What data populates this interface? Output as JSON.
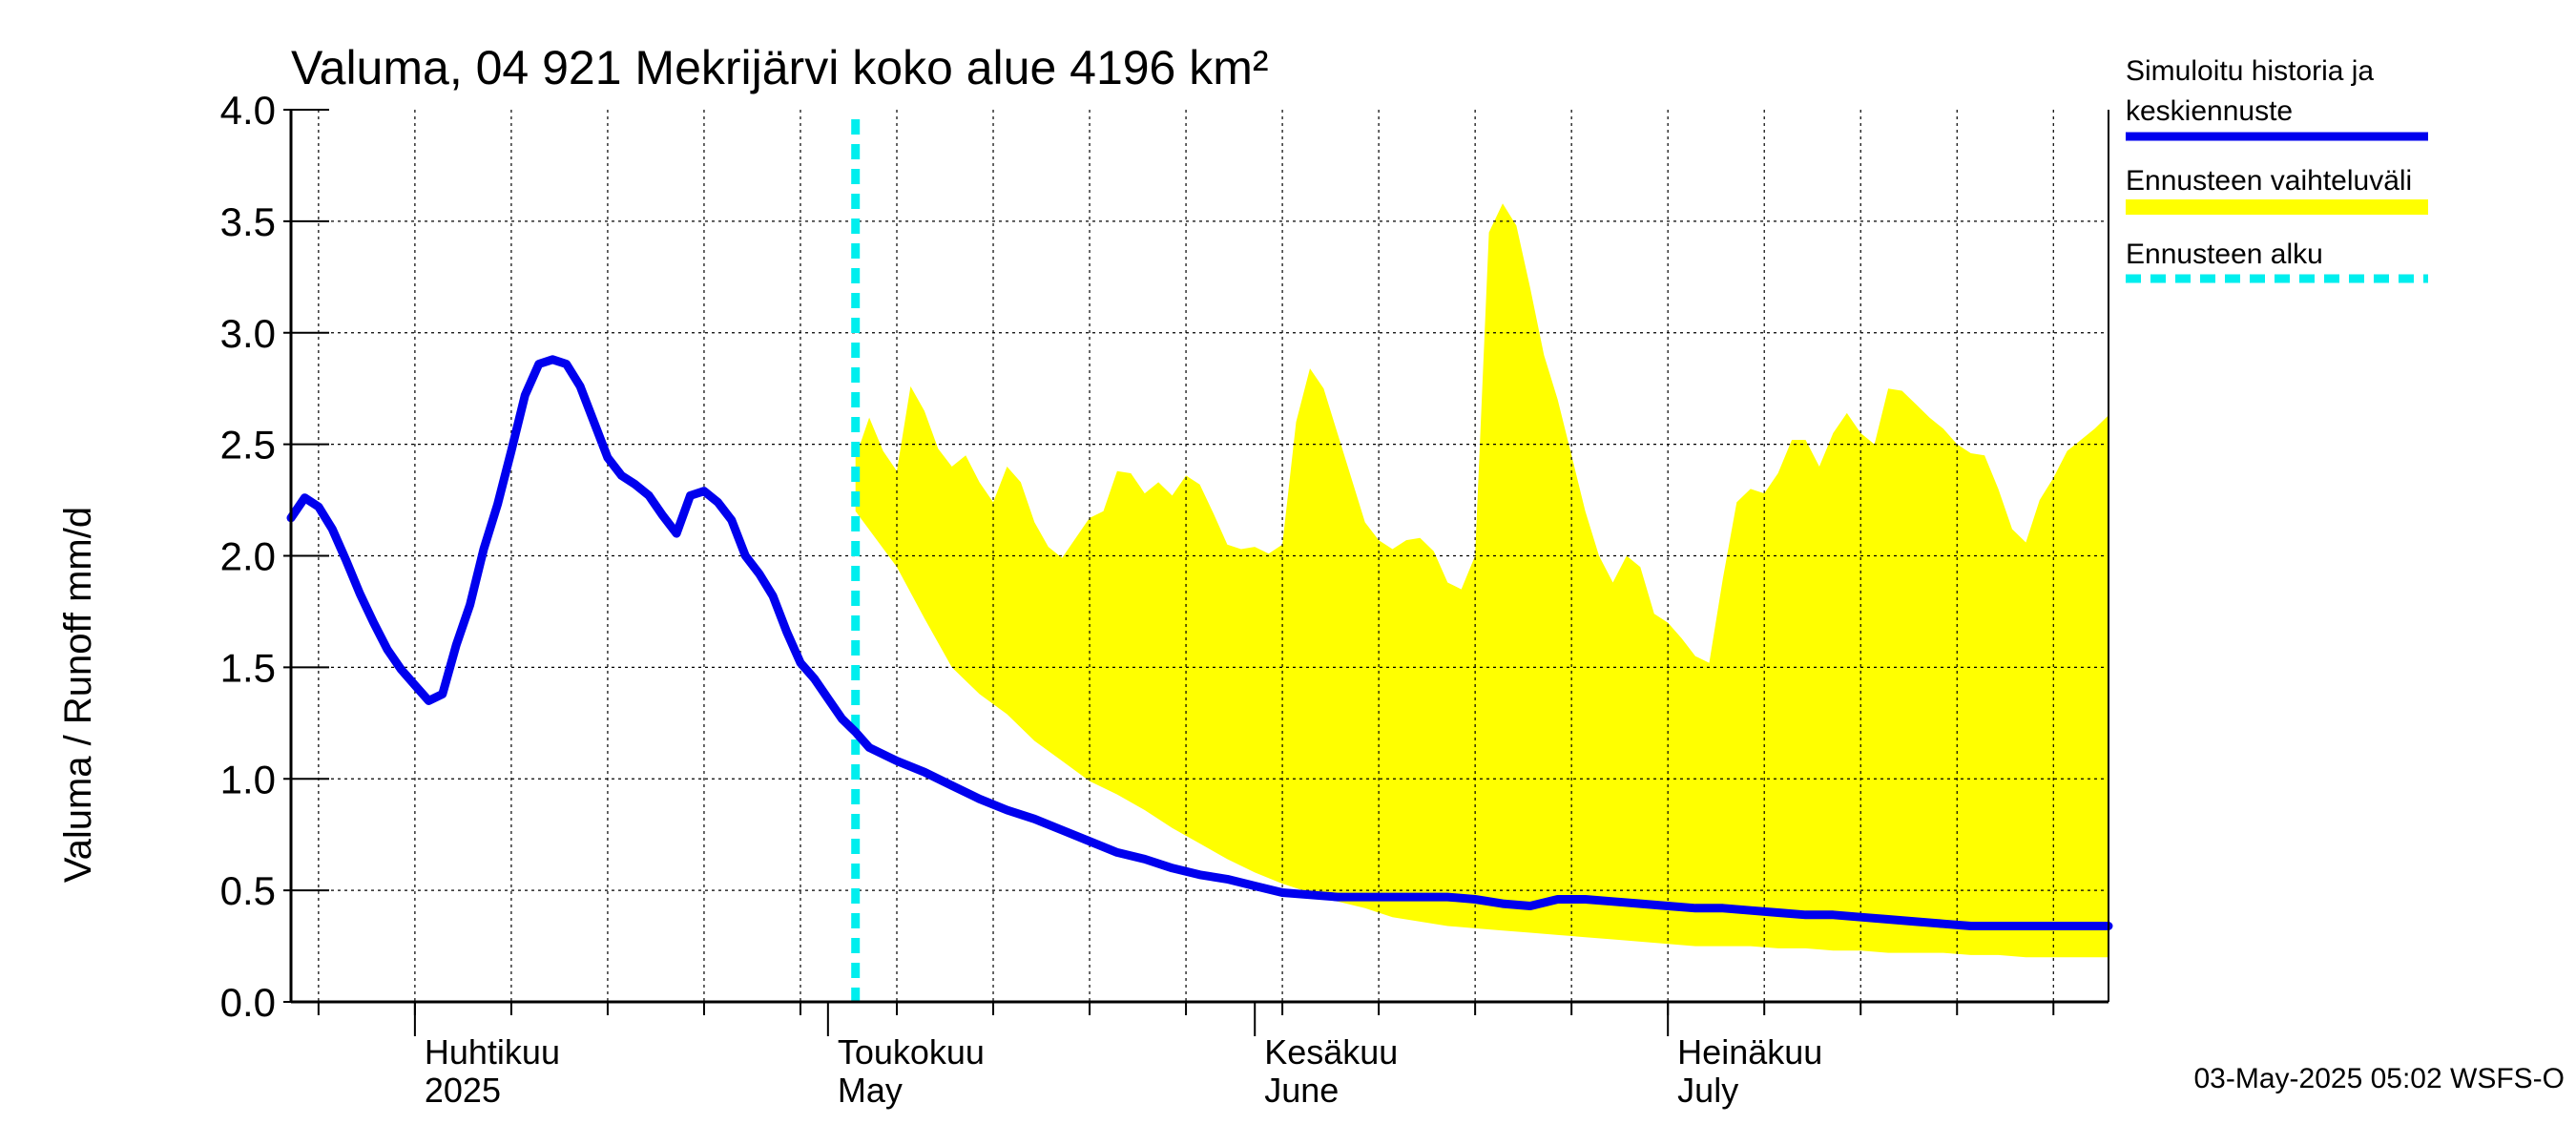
{
  "chart_data": {
    "type": "area",
    "title": "Valuma, 04 921 Mekrijärvi koko alue 4196 km²",
    "ylabel": "Valuma / Runoff     mm/d",
    "ylim": [
      0,
      4.0
    ],
    "yticks": [
      "0.0",
      "0.5",
      "1.0",
      "1.5",
      "2.0",
      "2.5",
      "3.0",
      "3.5",
      "4.0"
    ],
    "x_unit": "days since 2025-03-23",
    "xlim": [
      0,
      132
    ],
    "months": [
      {
        "name": "Huhtikuu",
        "en": "2025",
        "day": 9
      },
      {
        "name": "Toukokuu",
        "en": "May",
        "day": 39
      },
      {
        "name": "Kesäkuu",
        "en": "June",
        "day": 70
      },
      {
        "name": "Heinäkuu",
        "en": "July",
        "day": 100
      }
    ],
    "forecast_start_day": 41,
    "legend": {
      "history": "Simuloitu historia ja keskiennuste",
      "history_line1": "Simuloitu historia ja",
      "history_line2": "keskiennuste",
      "range": "Ennusteen vaihteluväli",
      "start": "Ennusteen alku"
    },
    "colors": {
      "history": "#0000ee",
      "range": "#ffff00",
      "start": "#00eeee"
    },
    "footer": "03-May-2025 05:02 WSFS-O",
    "series": [
      {
        "name": "Simuloitu historia ja keskiennuste",
        "x": [
          0,
          1,
          2,
          3,
          4,
          5,
          6,
          7,
          8,
          9,
          10,
          11,
          12,
          13,
          14,
          15,
          16,
          17,
          18,
          19,
          20,
          21,
          22,
          23,
          24,
          25,
          26,
          27,
          28,
          29,
          30,
          31,
          32,
          33,
          34,
          35,
          36,
          37,
          38,
          39,
          40,
          41,
          42,
          44,
          46,
          48,
          50,
          52,
          54,
          56,
          58,
          60,
          62,
          64,
          66,
          68,
          70,
          72,
          74,
          76,
          78,
          80,
          82,
          84,
          86,
          88,
          90,
          92,
          94,
          96,
          98,
          100,
          102,
          104,
          106,
          108,
          110,
          112,
          114,
          116,
          118,
          120,
          122,
          124,
          126,
          128,
          130,
          132
        ],
        "values": [
          2.17,
          2.26,
          2.22,
          2.12,
          1.98,
          1.83,
          1.7,
          1.58,
          1.49,
          1.42,
          1.35,
          1.38,
          1.6,
          1.78,
          2.03,
          2.23,
          2.47,
          2.72,
          2.86,
          2.88,
          2.86,
          2.76,
          2.6,
          2.44,
          2.36,
          2.32,
          2.27,
          2.18,
          2.1,
          2.27,
          2.29,
          2.24,
          2.16,
          2.0,
          1.92,
          1.82,
          1.66,
          1.52,
          1.45,
          1.36,
          1.27,
          1.21,
          1.14,
          1.08,
          1.03,
          0.97,
          0.91,
          0.86,
          0.82,
          0.77,
          0.72,
          0.67,
          0.64,
          0.6,
          0.57,
          0.55,
          0.52,
          0.49,
          0.48,
          0.47,
          0.47,
          0.47,
          0.47,
          0.47,
          0.46,
          0.44,
          0.43,
          0.46,
          0.46,
          0.45,
          0.44,
          0.43,
          0.42,
          0.42,
          0.41,
          0.4,
          0.39,
          0.39,
          0.38,
          0.37,
          0.36,
          0.35,
          0.34,
          0.34,
          0.34,
          0.34,
          0.34,
          0.34
        ]
      },
      {
        "name": "Ennusteen vaihteluväli (yläraja)",
        "x": [
          41,
          42,
          43,
          44,
          45,
          46,
          47,
          48,
          49,
          50,
          51,
          52,
          53,
          54,
          55,
          56,
          57,
          58,
          59,
          60,
          61,
          62,
          63,
          64,
          65,
          66,
          67,
          68,
          69,
          70,
          71,
          72,
          73,
          74,
          75,
          76,
          77,
          78,
          79,
          80,
          81,
          82,
          83,
          84,
          85,
          86,
          87,
          88,
          89,
          90,
          91,
          92,
          93,
          94,
          95,
          96,
          97,
          98,
          99,
          100,
          101,
          102,
          103,
          104,
          105,
          106,
          107,
          108,
          109,
          110,
          111,
          112,
          113,
          114,
          115,
          116,
          117,
          118,
          119,
          120,
          121,
          122,
          123,
          124,
          125,
          126,
          127,
          128,
          129,
          130,
          131,
          132
        ],
        "values": [
          2.44,
          2.62,
          2.47,
          2.38,
          2.76,
          2.65,
          2.48,
          2.4,
          2.45,
          2.33,
          2.24,
          2.4,
          2.33,
          2.15,
          2.04,
          1.99,
          2.08,
          2.17,
          2.2,
          2.38,
          2.37,
          2.28,
          2.33,
          2.27,
          2.36,
          2.32,
          2.19,
          2.05,
          2.03,
          2.04,
          2.01,
          2.05,
          2.6,
          2.84,
          2.75,
          2.55,
          2.35,
          2.15,
          2.07,
          2.03,
          2.07,
          2.08,
          2.02,
          1.88,
          1.85,
          2.0,
          3.45,
          3.58,
          3.48,
          3.2,
          2.9,
          2.7,
          2.45,
          2.2,
          2.0,
          1.88,
          2.0,
          1.95,
          1.74,
          1.7,
          1.63,
          1.55,
          1.52,
          1.9,
          2.24,
          2.3,
          2.28,
          2.37,
          2.52,
          2.52,
          2.4,
          2.55,
          2.64,
          2.55,
          2.5,
          2.75,
          2.74,
          2.68,
          2.62,
          2.57,
          2.5,
          2.46,
          2.45,
          2.3,
          2.12,
          2.06,
          2.25,
          2.35,
          2.47,
          2.52,
          2.57,
          2.63
        ]
      },
      {
        "name": "Ennusteen vaihteluväli (alaraja)",
        "x": [
          41,
          44,
          46,
          48,
          50,
          52,
          54,
          56,
          58,
          60,
          62,
          64,
          66,
          68,
          70,
          72,
          74,
          76,
          78,
          80,
          82,
          84,
          86,
          88,
          90,
          92,
          94,
          96,
          98,
          100,
          102,
          104,
          106,
          108,
          110,
          112,
          114,
          116,
          118,
          120,
          122,
          124,
          126,
          128,
          130,
          132
        ],
        "values": [
          2.2,
          1.95,
          1.72,
          1.5,
          1.38,
          1.29,
          1.17,
          1.08,
          0.99,
          0.93,
          0.86,
          0.78,
          0.71,
          0.64,
          0.58,
          0.53,
          0.49,
          0.45,
          0.42,
          0.38,
          0.36,
          0.34,
          0.33,
          0.32,
          0.31,
          0.3,
          0.29,
          0.28,
          0.27,
          0.26,
          0.25,
          0.25,
          0.25,
          0.24,
          0.24,
          0.23,
          0.23,
          0.22,
          0.22,
          0.22,
          0.21,
          0.21,
          0.2,
          0.2,
          0.2,
          0.2
        ]
      }
    ]
  }
}
